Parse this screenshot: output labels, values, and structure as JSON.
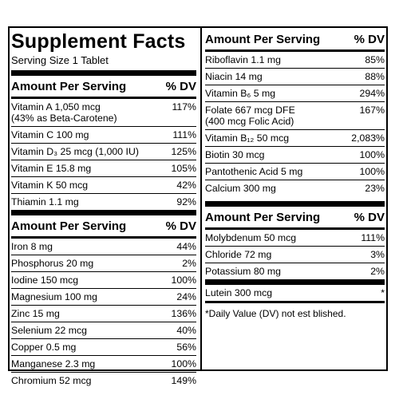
{
  "title": "Supplement Facts",
  "serving": "Serving Size 1 Tablet",
  "left": {
    "sections": [
      {
        "header": {
          "label": "Amount Per Serving",
          "dv": "% DV"
        },
        "rows": [
          {
            "name": "Vitamin A 1,050 mcg\n(43% as Beta-Carotene)",
            "dv": "117%"
          },
          {
            "name": "Vitamin C 100 mg",
            "dv": "111%"
          },
          {
            "name": "Vitamin D₃ 25 mcg (1,000 IU)",
            "dv": "125%"
          },
          {
            "name": "Vitamin E  15.8 mg",
            "dv": "105%"
          },
          {
            "name": "Vitamin K 50 mcg",
            "dv": "42%"
          },
          {
            "name": "Thiamin 1.1 mg",
            "dv": "92%"
          }
        ]
      },
      {
        "header": {
          "label": "Amount Per Serving",
          "dv": "% DV"
        },
        "rows": [
          {
            "name": "Iron 8 mg",
            "dv": "44%"
          },
          {
            "name": "Phosphorus 20 mg",
            "dv": "2%"
          },
          {
            "name": "Iodine 150 mcg",
            "dv": "100%"
          },
          {
            "name": "Magnesium 100 mg",
            "dv": "24%"
          },
          {
            "name": "Zinc 15 mg",
            "dv": "136%"
          },
          {
            "name": "Selenium 22 mcg",
            "dv": "40%"
          },
          {
            "name": "Copper 0.5 mg",
            "dv": "56%"
          },
          {
            "name": "Manganese 2.3 mg",
            "dv": "100%"
          },
          {
            "name": "Chromium 52 mcg",
            "dv": "149%"
          }
        ]
      }
    ]
  },
  "right": {
    "sections": [
      {
        "header": {
          "label": "Amount Per Serving",
          "dv": "% DV"
        },
        "rows": [
          {
            "name": "Riboflavin 1.1 mg",
            "dv": "85%"
          },
          {
            "name": "Niacin 14 mg",
            "dv": "88%"
          },
          {
            "name": "Vitamin B₆ 5 mg",
            "dv": "294%"
          },
          {
            "name": "Folate 667 mcg DFE\n(400 mcg Folic Acid)",
            "dv": "167%"
          },
          {
            "name": "Vitamin B₁₂ 50 mcg",
            "dv": "2,083%"
          },
          {
            "name": "Biotin 30 mcg",
            "dv": "100%"
          },
          {
            "name": "Pantothenic Acid 5 mg",
            "dv": "100%"
          },
          {
            "name": "Calcium 300 mg",
            "dv": "23%"
          }
        ]
      },
      {
        "header": {
          "label": "Amount Per Serving",
          "dv": "% DV"
        },
        "rows": [
          {
            "name": "Molybdenum 50 mcg",
            "dv": "111%"
          },
          {
            "name": "Chloride 72 mg",
            "dv": "3%"
          },
          {
            "name": "Potassium 80 mg",
            "dv": "2%"
          }
        ]
      }
    ],
    "extra_row": {
      "name": "Lutein 300 mcg",
      "dv": "*"
    },
    "footnote": "*Daily Value (DV) not est blished."
  }
}
